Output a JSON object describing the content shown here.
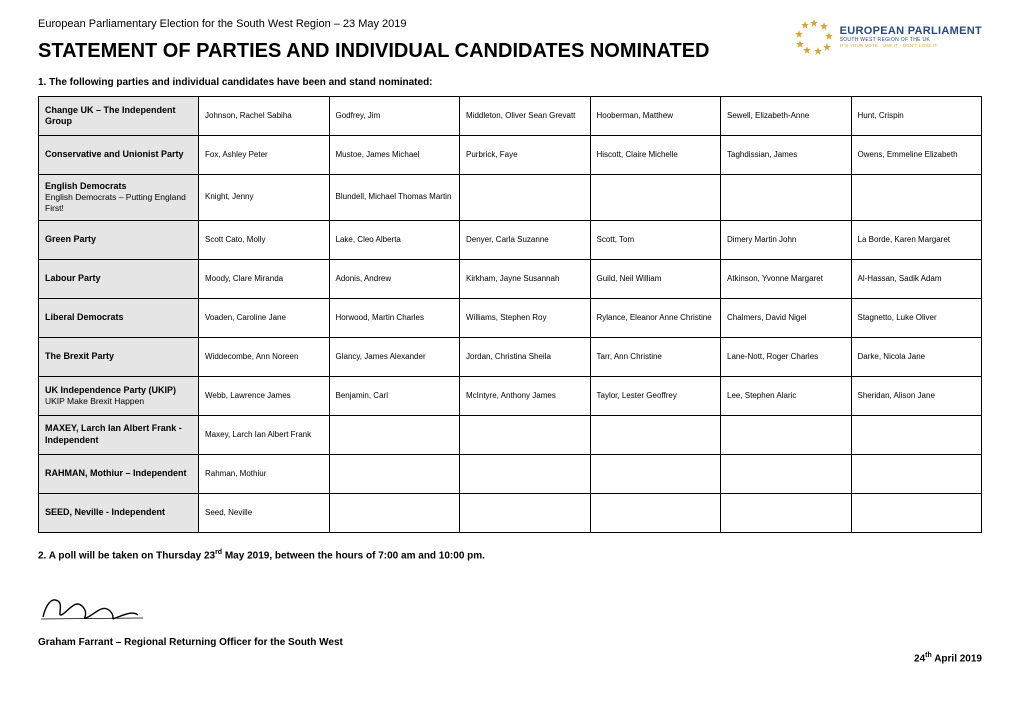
{
  "header": {
    "subtitle": "European Parliamentary Election for the South West Region – 23 May 2019",
    "title": "STATEMENT OF PARTIES AND INDIVIDUAL CANDIDATES NOMINATED",
    "intro": "1. The following parties and individual candidates have been and stand nominated:"
  },
  "logo": {
    "main": "EUROPEAN PARLIAMENT",
    "sub": "SOUTH WEST REGION OF THE UK",
    "tag": "IT'S YOUR VOTE · USE IT · DON'T LOSE IT",
    "star_color": "#d4a537",
    "text_color": "#2a4a7a"
  },
  "table": {
    "party_bg": "#e5e5e5",
    "border_color": "#000000",
    "columns": 7,
    "rows": [
      {
        "party": "Change UK – The Independent Group",
        "desc": "",
        "candidates": [
          "Johnson, Rachel Sabiha",
          "Godfrey, Jim",
          "Middleton, Oliver Sean Grevatt",
          "Hooberman, Matthew",
          "Sewell, Elizabeth-Anne",
          "Hunt, Crispin"
        ]
      },
      {
        "party": "Conservative and Unionist Party",
        "desc": "",
        "candidates": [
          "Fox, Ashley Peter",
          "Mustoe, James Michael",
          "Purbrick, Faye",
          "Hiscott, Claire Michelle",
          "Taghdissian, James",
          "Owens, Emmeline Elizabeth"
        ]
      },
      {
        "party": "English Democrats",
        "desc": "English Democrats – Putting England First!",
        "candidates": [
          "Knight, Jenny",
          "Blundell, Michael Thomas Martin",
          "",
          "",
          "",
          ""
        ]
      },
      {
        "party": "Green Party",
        "desc": "",
        "candidates": [
          "Scott Cato, Molly",
          "Lake, Cleo Alberta",
          "Denyer, Carla Suzanne",
          "Scott, Tom",
          "Dimery Martin John",
          "La Borde, Karen Margaret"
        ]
      },
      {
        "party": "Labour Party",
        "desc": "",
        "candidates": [
          "Moody, Clare Miranda",
          "Adonis, Andrew",
          "Kirkham, Jayne Susannah",
          "Guild, Neil William",
          "Atkinson, Yvonne Margaret",
          "Al-Hassan, Sadik Adam"
        ]
      },
      {
        "party": "Liberal Democrats",
        "desc": "",
        "candidates": [
          "Voaden, Caroline Jane",
          "Horwood, Martin Charles",
          "Williams, Stephen Roy",
          "Rylance, Eleanor Anne Christine",
          "Chalmers, David Nigel",
          "Stagnetto, Luke Oliver"
        ]
      },
      {
        "party": "The Brexit Party",
        "desc": "",
        "candidates": [
          "Widdecombe, Ann Noreen",
          "Glancy, James Alexander",
          "Jordan, Christina Sheila",
          "Tarr, Ann Christine",
          "Lane-Nott, Roger Charles",
          "Darke, Nicola Jane"
        ]
      },
      {
        "party": "UK Independence Party (UKIP)",
        "desc": "UKIP Make Brexit Happen",
        "candidates": [
          "Webb, Lawrence James",
          "Benjamin, Carl",
          "McIntyre, Anthony James",
          "Taylor, Lester Geoffrey",
          "Lee, Stephen Alaric",
          "Sheridan, Alison Jane"
        ]
      },
      {
        "party": "MAXEY, Larch Ian Albert Frank - Independent",
        "desc": "",
        "candidates": [
          "Maxey, Larch Ian Albert Frank",
          "",
          "",
          "",
          "",
          ""
        ]
      },
      {
        "party": "RAHMAN, Mothiur – Independent",
        "desc": "",
        "candidates": [
          "Rahman, Mothiur",
          "",
          "",
          "",
          "",
          ""
        ]
      },
      {
        "party": "SEED, Neville - Independent",
        "desc": "",
        "candidates": [
          "Seed, Neville",
          "",
          "",
          "",
          "",
          ""
        ]
      }
    ]
  },
  "footnote": {
    "prefix": "2. A poll will be taken on Thursday 23",
    "sup": "rd",
    "suffix": " May 2019, between the hours of 7:00 am and 10:00 pm."
  },
  "officer": "Graham Farrant – Regional Returning Officer for the South West",
  "date": {
    "prefix": "24",
    "sup": "th",
    "suffix": " April 2019"
  }
}
